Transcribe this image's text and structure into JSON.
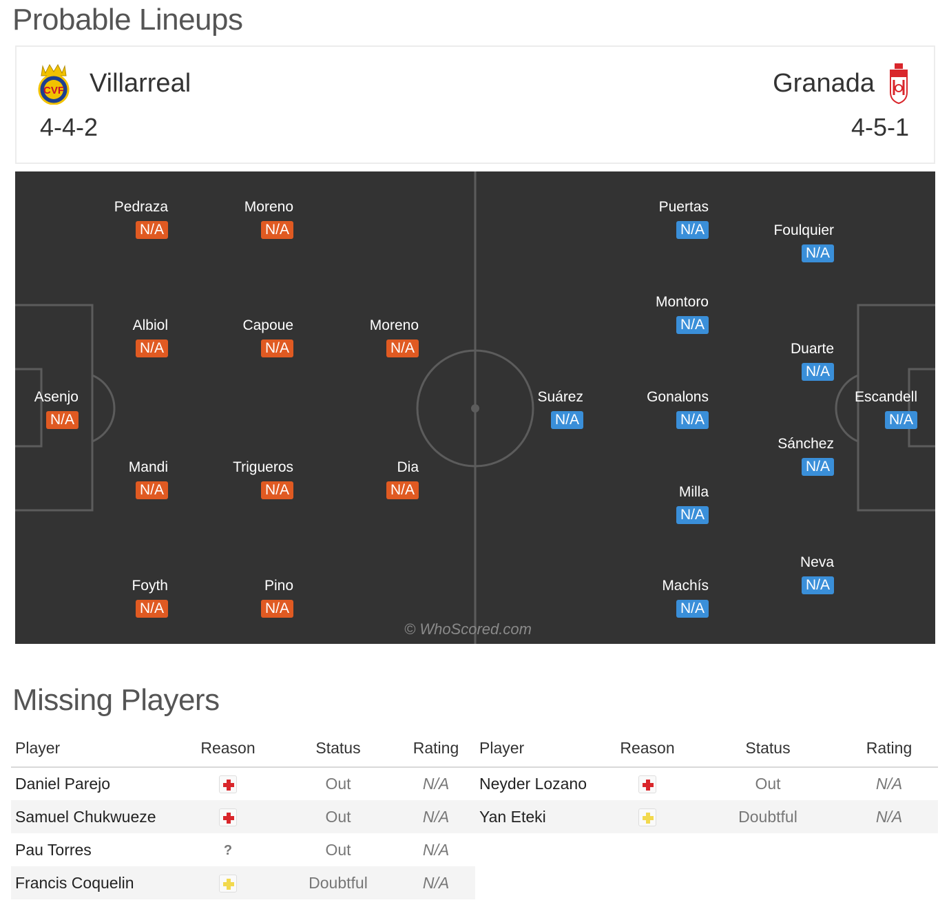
{
  "lineups": {
    "title": "Probable Lineups",
    "home": {
      "name": "Villarreal",
      "formation": "4-4-2",
      "logo": "villarreal-crest-icon"
    },
    "away": {
      "name": "Granada",
      "formation": "4-5-1",
      "logo": "granada-crest-icon"
    },
    "home_players": [
      {
        "name": "Pedraza",
        "rating": "N/A"
      },
      {
        "name": "Moreno",
        "rating": "N/A"
      },
      {
        "name": "Albiol",
        "rating": "N/A"
      },
      {
        "name": "Capoue",
        "rating": "N/A"
      },
      {
        "name": "Moreno",
        "rating": "N/A"
      },
      {
        "name": "Asenjo",
        "rating": "N/A"
      },
      {
        "name": "Mandi",
        "rating": "N/A"
      },
      {
        "name": "Trigueros",
        "rating": "N/A"
      },
      {
        "name": "Dia",
        "rating": "N/A"
      },
      {
        "name": "Foyth",
        "rating": "N/A"
      },
      {
        "name": "Pino",
        "rating": "N/A"
      }
    ],
    "away_players": [
      {
        "name": "Puertas",
        "rating": "N/A"
      },
      {
        "name": "Foulquier",
        "rating": "N/A"
      },
      {
        "name": "Montoro",
        "rating": "N/A"
      },
      {
        "name": "Duarte",
        "rating": "N/A"
      },
      {
        "name": "Suárez",
        "rating": "N/A"
      },
      {
        "name": "Gonalons",
        "rating": "N/A"
      },
      {
        "name": "Escandell",
        "rating": "N/A"
      },
      {
        "name": "Sánchez",
        "rating": "N/A"
      },
      {
        "name": "Milla",
        "rating": "N/A"
      },
      {
        "name": "Neva",
        "rating": "N/A"
      },
      {
        "name": "Machís",
        "rating": "N/A"
      }
    ],
    "watermark": "© WhoScored.com",
    "colors": {
      "pitch": "#333333",
      "home_rating": "#e05a22",
      "away_rating": "#3a8fd9"
    }
  },
  "missing": {
    "title": "Missing Players",
    "headers": {
      "player": "Player",
      "reason": "Reason",
      "status": "Status",
      "rating": "Rating"
    },
    "home": [
      {
        "player": "Daniel Parejo",
        "reason": "injury-icon",
        "status": "Out",
        "rating": "N/A"
      },
      {
        "player": "Samuel Chukwueze",
        "reason": "injury-icon",
        "status": "Out",
        "rating": "N/A"
      },
      {
        "player": "Pau Torres",
        "reason": "unknown-icon",
        "status": "Out",
        "rating": "N/A"
      },
      {
        "player": "Francis Coquelin",
        "reason": "doubtful-icon",
        "status": "Doubtful",
        "rating": "N/A"
      }
    ],
    "away": [
      {
        "player": "Neyder Lozano",
        "reason": "injury-icon",
        "status": "Out",
        "rating": "N/A"
      },
      {
        "player": "Yan Eteki",
        "reason": "doubtful-icon",
        "status": "Doubtful",
        "rating": "N/A"
      }
    ],
    "colors": {
      "injury": "#d9262b",
      "doubtful": "#f2d94e"
    }
  }
}
